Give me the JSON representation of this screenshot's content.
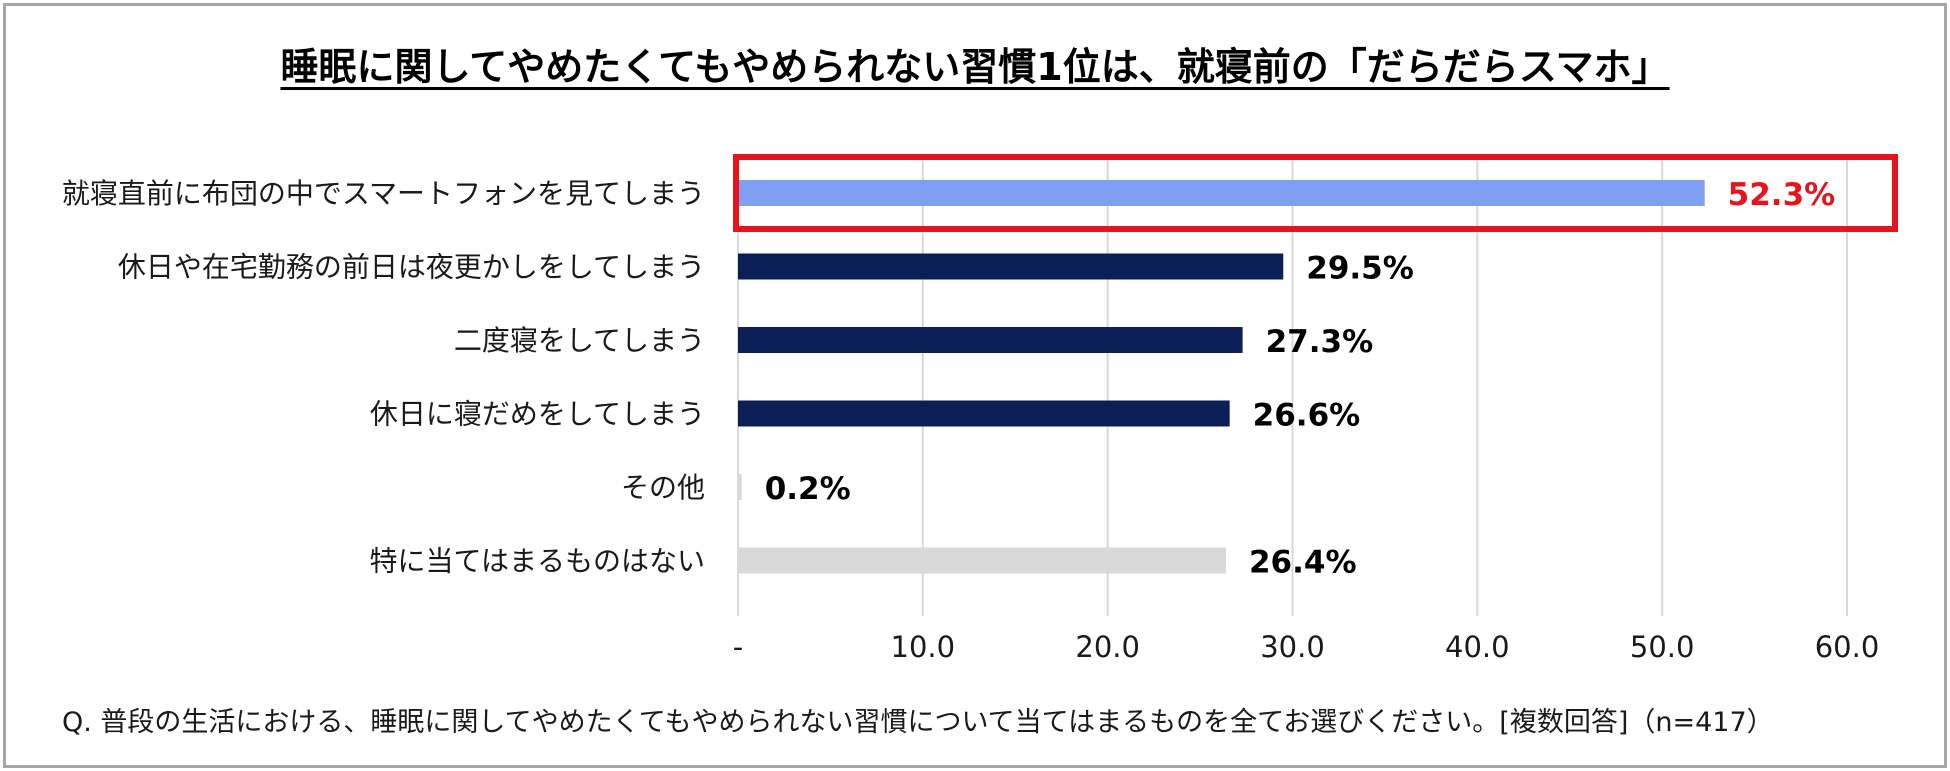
{
  "title": "睡眠に関してやめたくてもやめられない習慣1位は、就寝前の「だらだらスマホ」",
  "question": "Q. 普段の生活における、睡眠に関してやめたくてもやめられない習慣について当てはまるものを全てお選びください。[複数回答]（n=417）",
  "chart_data": {
    "type": "bar",
    "orientation": "horizontal",
    "title": "睡眠に関してやめたくてもやめられない習慣1位は、就寝前の「だらだらスマホ」",
    "xlim": [
      0,
      60
    ],
    "x_ticks": [
      0,
      10,
      20,
      30,
      40,
      50,
      60
    ],
    "x_tick_labels": [
      "-",
      "10.0",
      "20.0",
      "30.0",
      "40.0",
      "50.0",
      "60.0"
    ],
    "grid": true,
    "categories": [
      "就寝直前に布団の中でスマートフォンを見てしまう",
      "休日や在宅勤務の前日は夜更かしをしてしまう",
      "二度寝をしてしまう",
      "休日に寝だめをしてしまう",
      "その他",
      "特に当てはまるものはない"
    ],
    "values": [
      52.3,
      29.5,
      27.3,
      26.6,
      0.2,
      26.4
    ],
    "value_labels": [
      "52.3%",
      "29.5%",
      "27.3%",
      "26.6%",
      "0.2%",
      "26.4%"
    ],
    "bar_colors": [
      "#7f9ff2",
      "#0b1f56",
      "#0b1f56",
      "#0b1f56",
      "#d9d9d9",
      "#d9d9d9"
    ],
    "label_colors": [
      "#e8141b",
      "#000000",
      "#000000",
      "#000000",
      "#000000",
      "#000000"
    ],
    "highlight_color": "#e8141b",
    "highlight_index": 0
  }
}
